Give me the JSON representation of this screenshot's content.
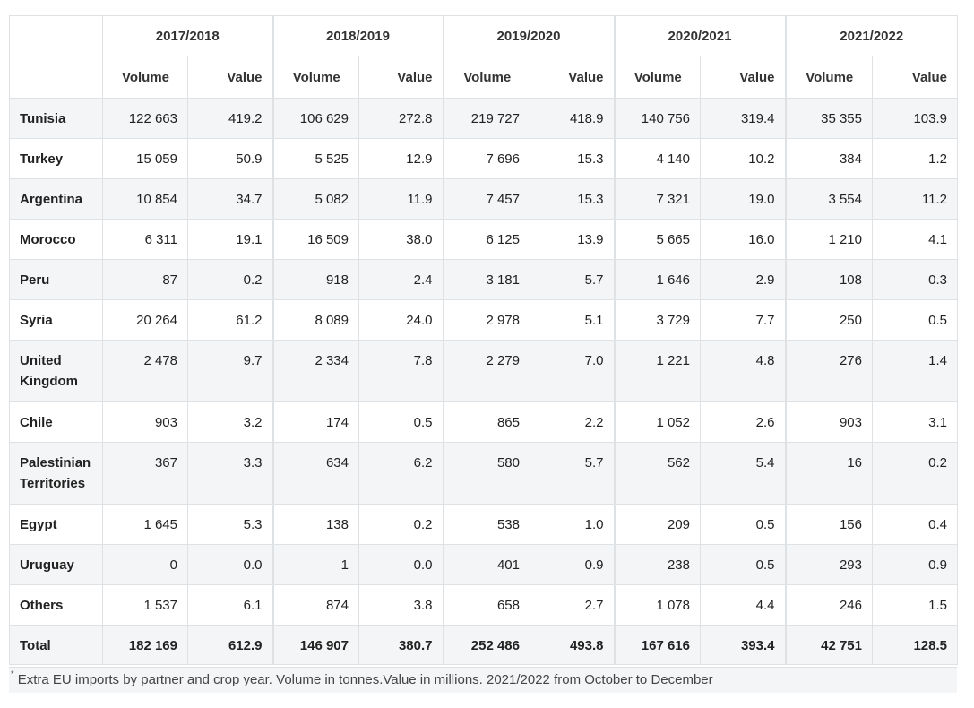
{
  "years": [
    "2017/2018",
    "2018/2019",
    "2019/2020",
    "2020/2021",
    "2021/2022"
  ],
  "sub_headers": {
    "volume": "Volume",
    "value": "Value"
  },
  "rows": [
    {
      "name": "Tunisia",
      "cells": [
        "122 663",
        "419.2",
        "106 629",
        "272.8",
        "219 727",
        "418.9",
        "140 756",
        "319.4",
        "35 355",
        "103.9"
      ]
    },
    {
      "name": "Turkey",
      "cells": [
        "15 059",
        "50.9",
        "5 525",
        "12.9",
        "7 696",
        "15.3",
        "4 140",
        "10.2",
        "384",
        "1.2"
      ]
    },
    {
      "name": "Argentina",
      "cells": [
        "10 854",
        "34.7",
        "5 082",
        "11.9",
        "7 457",
        "15.3",
        "7 321",
        "19.0",
        "3 554",
        "11.2"
      ]
    },
    {
      "name": "Morocco",
      "cells": [
        "6 311",
        "19.1",
        "16 509",
        "38.0",
        "6 125",
        "13.9",
        "5 665",
        "16.0",
        "1 210",
        "4.1"
      ]
    },
    {
      "name": "Peru",
      "cells": [
        "87",
        "0.2",
        "918",
        "2.4",
        "3 181",
        "5.7",
        "1 646",
        "2.9",
        "108",
        "0.3"
      ]
    },
    {
      "name": "Syria",
      "cells": [
        "20 264",
        "61.2",
        "8 089",
        "24.0",
        "2 978",
        "5.1",
        "3 729",
        "7.7",
        "250",
        "0.5"
      ]
    },
    {
      "name": "United Kingdom",
      "cells": [
        "2 478",
        "9.7",
        "2 334",
        "7.8",
        "2 279",
        "7.0",
        "1 221",
        "4.8",
        "276",
        "1.4"
      ]
    },
    {
      "name": "Chile",
      "cells": [
        "903",
        "3.2",
        "174",
        "0.5",
        "865",
        "2.2",
        "1 052",
        "2.6",
        "903",
        "3.1"
      ]
    },
    {
      "name": "Palestinian Territories",
      "cells": [
        "367",
        "3.3",
        "634",
        "6.2",
        "580",
        "5.7",
        "562",
        "5.4",
        "16",
        "0.2"
      ]
    },
    {
      "name": "Egypt",
      "cells": [
        "1 645",
        "5.3",
        "138",
        "0.2",
        "538",
        "1.0",
        "209",
        "0.5",
        "156",
        "0.4"
      ]
    },
    {
      "name": "Uruguay",
      "cells": [
        "0",
        "0.0",
        "1",
        "0.0",
        "401",
        "0.9",
        "238",
        "0.5",
        "293",
        "0.9"
      ]
    },
    {
      "name": "Others",
      "cells": [
        "1 537",
        "6.1",
        "874",
        "3.8",
        "658",
        "2.7",
        "1 078",
        "4.4",
        "246",
        "1.5"
      ]
    }
  ],
  "total": {
    "name": "Total",
    "cells": [
      "182 169",
      "612.9",
      "146 907",
      "380.7",
      "252 486",
      "493.8",
      "167 616",
      "393.4",
      "42 751",
      "128.5"
    ]
  },
  "footnote": {
    "marker": "*",
    "text": "Extra EU imports by partner and crop year. Volume in tonnes.Value in millions. 2021/2022 from October to December"
  }
}
